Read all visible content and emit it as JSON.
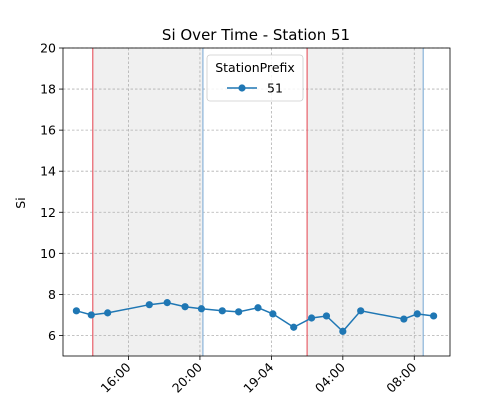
{
  "chart_data": {
    "type": "line",
    "title": "Si  Over Time - Station 51",
    "xlabel": "",
    "ylabel": "Si",
    "x_axis": "time",
    "x_range": [
      "04-18 12:20",
      "04-19 10:00"
    ],
    "ylim": [
      5,
      20
    ],
    "yticks": [
      6,
      8,
      10,
      12,
      14,
      16,
      18,
      20
    ],
    "xticks": [
      {
        "t": "04-18 16:00",
        "label": "16:00"
      },
      {
        "t": "04-18 20:00",
        "label": "20:00"
      },
      {
        "t": "04-19 00:00",
        "label": "19-04"
      },
      {
        "t": "04-19 04:00",
        "label": "04:00"
      },
      {
        "t": "04-19 08:00",
        "label": "08:00"
      }
    ],
    "grid": true,
    "legend": {
      "title": "StationPrefix",
      "position": "top-center"
    },
    "series": [
      {
        "name": "51",
        "color": "#1f77b4",
        "marker": "circle",
        "points": [
          {
            "t": "04-18 13:05",
            "y": 7.2
          },
          {
            "t": "04-18 13:55",
            "y": 7.0
          },
          {
            "t": "04-18 14:50",
            "y": 7.1
          },
          {
            "t": "04-18 17:10",
            "y": 7.5
          },
          {
            "t": "04-18 18:10",
            "y": 7.6
          },
          {
            "t": "04-18 19:10",
            "y": 7.4
          },
          {
            "t": "04-18 20:05",
            "y": 7.3
          },
          {
            "t": "04-18 21:15",
            "y": 7.2
          },
          {
            "t": "04-18 22:10",
            "y": 7.15
          },
          {
            "t": "04-18 23:15",
            "y": 7.35
          },
          {
            "t": "04-19 00:05",
            "y": 7.05
          },
          {
            "t": "04-19 01:15",
            "y": 6.4
          },
          {
            "t": "04-19 02:15",
            "y": 6.85
          },
          {
            "t": "04-19 03:05",
            "y": 6.95
          },
          {
            "t": "04-19 04:00",
            "y": 6.2
          },
          {
            "t": "04-19 05:00",
            "y": 7.2
          },
          {
            "t": "04-19 07:25",
            "y": 6.8
          },
          {
            "t": "04-19 08:10",
            "y": 7.05
          },
          {
            "t": "04-19 09:05",
            "y": 6.95
          }
        ]
      }
    ],
    "shaded_regions": [
      {
        "start": "04-18 14:00",
        "end": "04-18 20:10",
        "color": "#f0f0f0"
      },
      {
        "start": "04-19 02:00",
        "end": "04-19 08:30",
        "color": "#f0f0f0"
      }
    ],
    "vertical_lines": [
      {
        "t": "04-18 14:00",
        "color": "#e8606a"
      },
      {
        "t": "04-18 20:10",
        "color": "#8ab4d9"
      },
      {
        "t": "04-19 02:00",
        "color": "#e8606a"
      },
      {
        "t": "04-19 08:30",
        "color": "#8ab4d9"
      }
    ]
  }
}
